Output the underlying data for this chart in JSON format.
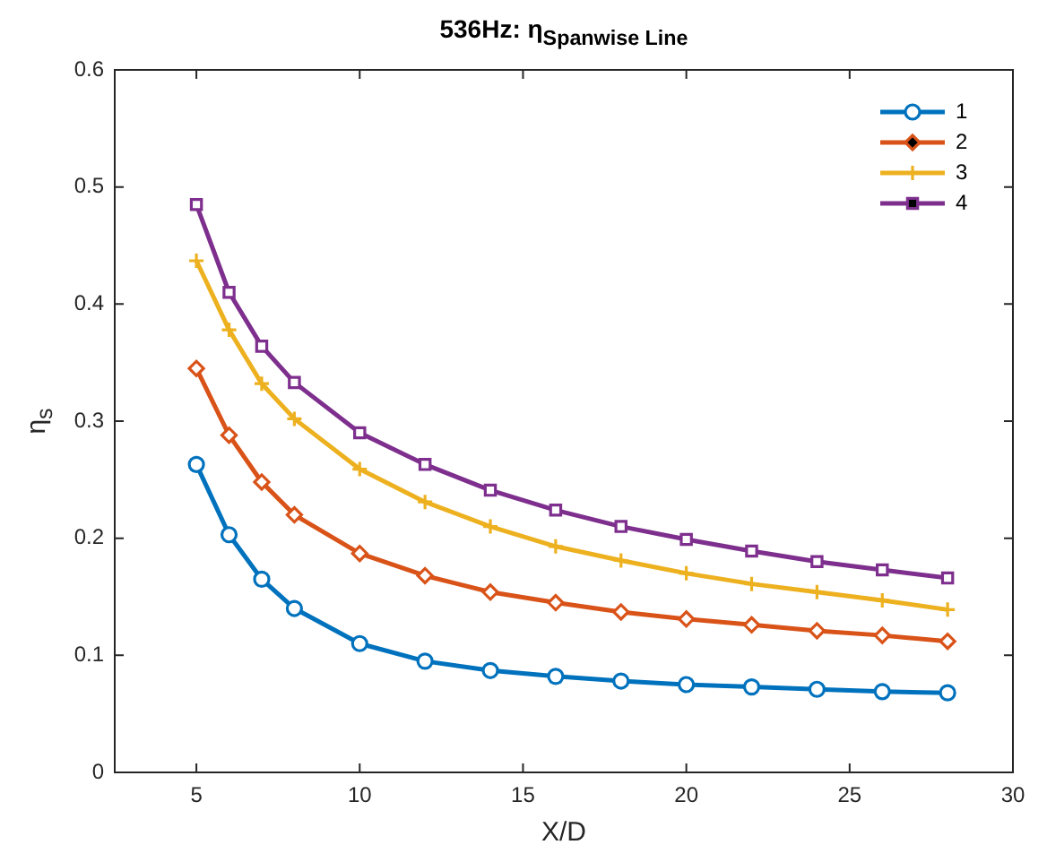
{
  "chart_data": {
    "type": "line",
    "title": "536Hz: η$_{Spanwise Line}$",
    "xlabel": "X/D",
    "ylabel": "η$_{s}$",
    "x": [
      5,
      6,
      7,
      8,
      10,
      12,
      14,
      16,
      18,
      20,
      22,
      24,
      26,
      28
    ],
    "series": [
      {
        "name": "1",
        "color": "#0072bd",
        "marker": "circle",
        "values": [
          0.263,
          0.203,
          0.165,
          0.14,
          0.11,
          0.095,
          0.087,
          0.082,
          0.078,
          0.075,
          0.073,
          0.071,
          0.069,
          0.068
        ]
      },
      {
        "name": "2",
        "color": "#d95319",
        "marker": "diamond",
        "values": [
          0.345,
          0.288,
          0.248,
          0.22,
          0.187,
          0.168,
          0.154,
          0.145,
          0.137,
          0.131,
          0.126,
          0.121,
          0.117,
          0.112
        ]
      },
      {
        "name": "3",
        "color": "#edb120",
        "marker": "cross",
        "values": [
          0.437,
          0.378,
          0.332,
          0.302,
          0.259,
          0.231,
          0.21,
          0.193,
          0.181,
          0.17,
          0.161,
          0.154,
          0.147,
          0.139
        ]
      },
      {
        "name": "4",
        "color": "#7e2f8e",
        "marker": "square",
        "values": [
          0.485,
          0.41,
          0.364,
          0.333,
          0.29,
          0.263,
          0.241,
          0.224,
          0.21,
          0.199,
          0.189,
          0.18,
          0.173,
          0.166
        ]
      }
    ],
    "xlim": [
      2.5,
      30
    ],
    "xticks": [
      5,
      10,
      15,
      20,
      25,
      30
    ],
    "ylim": [
      0,
      0.6
    ],
    "yticks": [
      0,
      0.1,
      0.2,
      0.3,
      0.4,
      0.5,
      0.6
    ],
    "grid": false,
    "legend": "top right",
    "line_style": "solid"
  }
}
